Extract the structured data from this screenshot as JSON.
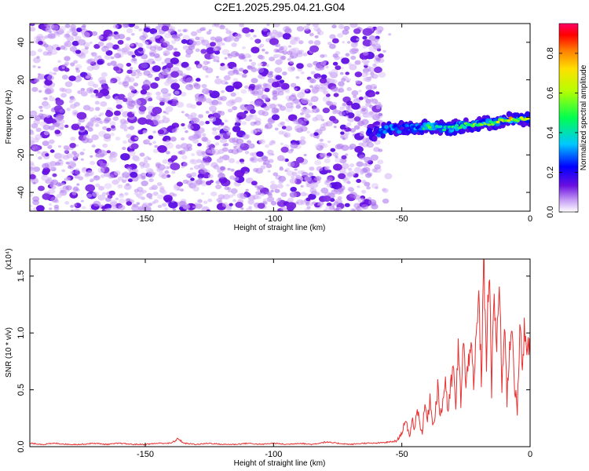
{
  "title": "C2E1.2025.295.04.21.G04",
  "chart_data": [
    {
      "type": "heatmap",
      "xlabel": "Height of straight line (km)",
      "ylabel": "Frequency (Hz)",
      "xlim": [
        -195,
        0
      ],
      "ylim": [
        -50,
        50
      ],
      "xticks": [
        {
          "value": -150,
          "label": "-150"
        },
        {
          "value": -100,
          "label": "-100"
        },
        {
          "value": -50,
          "label": "-50"
        },
        {
          "value": 0,
          "label": "0"
        }
      ],
      "yticks": [
        {
          "value": 40,
          "label": "40"
        },
        {
          "value": 20,
          "label": "20"
        },
        {
          "value": 0,
          "label": "0"
        },
        {
          "value": -20,
          "label": "-20"
        },
        {
          "value": -40,
          "label": "-40"
        }
      ],
      "colorbar": {
        "label": "Normalized spectral amplitude",
        "range": [
          0,
          0.95
        ],
        "ticks": [
          {
            "value": 0.0,
            "label": "0.0"
          },
          {
            "value": 0.2,
            "label": "0.2"
          },
          {
            "value": 0.4,
            "label": "0.4"
          },
          {
            "value": 0.6,
            "label": "0.6"
          },
          {
            "value": 0.8,
            "label": "0.8"
          }
        ]
      },
      "noise_region": {
        "x_from": -195,
        "x_to": -58,
        "level": 0.1
      },
      "signal_track": {
        "points": [
          {
            "x": -63,
            "y": -10,
            "amp": 0.15
          },
          {
            "x": -55,
            "y": -6,
            "amp": 0.2
          },
          {
            "x": -48,
            "y": -6,
            "amp": 0.25
          },
          {
            "x": -40,
            "y": -5,
            "amp": 0.55
          },
          {
            "x": -32,
            "y": -6,
            "amp": 0.45
          },
          {
            "x": -25,
            "y": -4,
            "amp": 0.6
          },
          {
            "x": -15,
            "y": -3,
            "amp": 0.55
          },
          {
            "x": -8,
            "y": -1,
            "amp": 0.9
          },
          {
            "x": 0,
            "y": -1,
            "amp": 0.7
          }
        ]
      }
    },
    {
      "type": "line",
      "xlabel": "Height of straight line (km)",
      "ylabel": "SNR (10 * v/v)",
      "y_multiplier": "(x10⁴)",
      "xlim": [
        -195,
        0
      ],
      "ylim": [
        0,
        1.65
      ],
      "color": "#e83030",
      "xticks": [
        {
          "value": -150,
          "label": "-150"
        },
        {
          "value": -100,
          "label": "-100"
        },
        {
          "value": -50,
          "label": "-50"
        },
        {
          "value": 0,
          "label": "0"
        }
      ],
      "yticks": [
        {
          "value": 0.0,
          "label": "0.0"
        },
        {
          "value": 0.5,
          "label": "0.5"
        },
        {
          "value": 1.0,
          "label": "1.0"
        },
        {
          "value": 1.5,
          "label": "1.5"
        }
      ],
      "series": [
        {
          "x": [
            -195,
            -190,
            -185,
            -180,
            -175,
            -170,
            -165,
            -160,
            -155,
            -150,
            -145,
            -140,
            -137,
            -135,
            -130,
            -125,
            -120,
            -115,
            -110,
            -105,
            -100,
            -95,
            -90,
            -85,
            -80,
            -75,
            -70,
            -65,
            -60,
            -55,
            -52,
            -50,
            -49,
            -48,
            -47,
            -46,
            -45,
            -44,
            -43,
            -42,
            -41,
            -40,
            -39,
            -38,
            -37,
            -36,
            -35,
            -34,
            -33,
            -32,
            -31,
            -30,
            -29,
            -28,
            -27,
            -26,
            -25,
            -24,
            -23,
            -22,
            -21,
            -20,
            -19,
            -18,
            -17,
            -16,
            -15,
            -14,
            -13,
            -12,
            -11,
            -10,
            -9,
            -8,
            -7,
            -6,
            -5,
            -4,
            -3,
            -2,
            -1,
            0
          ],
          "y": [
            0.03,
            0.02,
            0.03,
            0.02,
            0.02,
            0.03,
            0.02,
            0.03,
            0.02,
            0.02,
            0.03,
            0.03,
            0.07,
            0.03,
            0.02,
            0.03,
            0.02,
            0.02,
            0.03,
            0.02,
            0.03,
            0.02,
            0.03,
            0.02,
            0.04,
            0.03,
            0.02,
            0.03,
            0.03,
            0.04,
            0.05,
            0.12,
            0.22,
            0.18,
            0.08,
            0.25,
            0.15,
            0.35,
            0.2,
            0.12,
            0.38,
            0.22,
            0.45,
            0.18,
            0.3,
            0.55,
            0.25,
            0.4,
            0.6,
            0.3,
            0.5,
            0.7,
            0.35,
            0.85,
            0.4,
            0.95,
            0.5,
            0.75,
            1.05,
            0.45,
            0.95,
            1.3,
            0.6,
            1.65,
            0.75,
            1.6,
            0.5,
            1.35,
            0.85,
            1.5,
            0.45,
            1.2,
            0.4,
            0.9,
            1.1,
            0.55,
            0.3,
            1.0,
            0.7,
            1.1,
            0.9,
            0.8
          ]
        }
      ]
    }
  ]
}
